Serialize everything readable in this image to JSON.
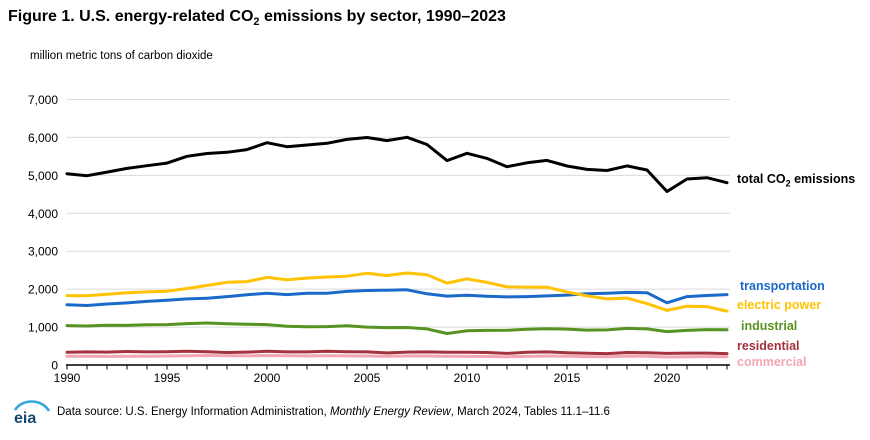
{
  "figure": {
    "title_pre": "Figure 1. U.S. energy-related CO",
    "title_sub": "2",
    "title_post": " emissions by sector, 1990–2023",
    "unit_label": "million metric tons of carbon dioxide"
  },
  "legend": {
    "total_pre": "total CO",
    "total_sub": "2",
    "total_post": " emissions"
  },
  "footer": {
    "logo_text": "eia",
    "source_pre": "Data source: U.S. Energy Information Administration, ",
    "source_italic": "Monthly Energy Review",
    "source_post": ", March 2024, Tables 11.1–11.6"
  },
  "colors": {
    "grid": "#DADADA",
    "axis": "#000000",
    "logo_text": "#12496E",
    "logo_arc": "#33A6DD"
  },
  "chart_data": {
    "type": "line",
    "title": "Figure 1. U.S. energy-related CO2 emissions by sector, 1990-2023",
    "ylabel": "million metric tons of carbon dioxide",
    "xlabel": "",
    "xlim": [
      1990,
      2023
    ],
    "ylim": [
      0,
      7000
    ],
    "grid": "horizontal",
    "legend_position": "right-of-line-ends",
    "y_ticks": [
      0,
      1000,
      2000,
      3000,
      4000,
      5000,
      6000,
      7000
    ],
    "y_tick_labels": [
      "0",
      "1,000",
      "2,000",
      "3,000",
      "4,000",
      "5,000",
      "6,000",
      "7,000"
    ],
    "x_label_ticks": [
      1990,
      1995,
      2000,
      2005,
      2010,
      2015,
      2020
    ],
    "years": [
      1990,
      1991,
      1992,
      1993,
      1994,
      1995,
      1996,
      1997,
      1998,
      1999,
      2000,
      2001,
      2002,
      2003,
      2004,
      2005,
      2006,
      2007,
      2008,
      2009,
      2010,
      2011,
      2012,
      2013,
      2014,
      2015,
      2016,
      2017,
      2018,
      2019,
      2020,
      2021,
      2022,
      2023
    ],
    "series": [
      {
        "name": "total CO2 emissions",
        "color": "#000000",
        "values": [
          5040,
          4992,
          5086,
          5184,
          5255,
          5322,
          5503,
          5575,
          5609,
          5680,
          5862,
          5756,
          5800,
          5846,
          5948,
          5999,
          5917,
          6003,
          5813,
          5388,
          5582,
          5447,
          5227,
          5331,
          5395,
          5248,
          5157,
          5128,
          5249,
          5141,
          4575,
          4905,
          4939,
          4807
        ]
      },
      {
        "name": "transportation",
        "color": "#1B6AC9",
        "values": [
          1590,
          1570,
          1608,
          1636,
          1677,
          1705,
          1744,
          1758,
          1804,
          1854,
          1891,
          1856,
          1893,
          1894,
          1941,
          1964,
          1973,
          1983,
          1877,
          1816,
          1838,
          1813,
          1795,
          1804,
          1822,
          1843,
          1879,
          1893,
          1915,
          1905,
          1641,
          1804,
          1832,
          1857
        ]
      },
      {
        "name": "electric power",
        "color": "#FFC303",
        "values": [
          1831,
          1825,
          1866,
          1905,
          1926,
          1947,
          2016,
          2097,
          2180,
          2200,
          2310,
          2250,
          2290,
          2320,
          2340,
          2417,
          2360,
          2425,
          2377,
          2160,
          2270,
          2177,
          2060,
          2053,
          2050,
          1925,
          1821,
          1743,
          1763,
          1618,
          1439,
          1551,
          1539,
          1421
        ]
      },
      {
        "name": "industrial",
        "color": "#579322",
        "values": [
          1040,
          1028,
          1047,
          1043,
          1060,
          1065,
          1092,
          1108,
          1090,
          1074,
          1064,
          1022,
          1010,
          1012,
          1035,
          1000,
          985,
          990,
          953,
          830,
          901,
          913,
          915,
          942,
          956,
          946,
          920,
          926,
          965,
          953,
          881,
          912,
          933,
          929
        ]
      },
      {
        "name": "residential",
        "color": "#A4323F",
        "values": [
          338,
          345,
          340,
          355,
          345,
          350,
          365,
          350,
          330,
          340,
          360,
          345,
          345,
          360,
          350,
          345,
          320,
          340,
          345,
          335,
          335,
          330,
          305,
          335,
          345,
          325,
          310,
          300,
          330,
          325,
          305,
          315,
          315,
          300
        ]
      },
      {
        "name": "commercial",
        "color": "#F2A6B3",
        "values": [
          229,
          232,
          228,
          230,
          232,
          236,
          242,
          250,
          242,
          240,
          250,
          245,
          240,
          242,
          240,
          238,
          230,
          238,
          238,
          230,
          228,
          226,
          218,
          228,
          236,
          230,
          222,
          220,
          235,
          230,
          210,
          218,
          222,
          215
        ]
      }
    ]
  }
}
